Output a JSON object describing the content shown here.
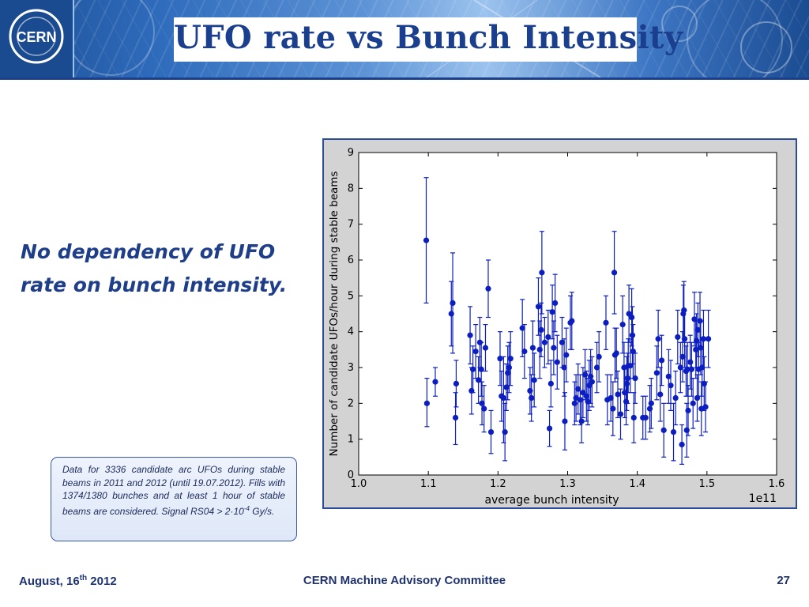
{
  "slide": {
    "title": "UFO rate vs Bunch Intensity",
    "claim_line1": "No dependency of UFO",
    "claim_line2": "rate on bunch intensity.",
    "note": {
      "part1": "Data for 3336 candidate arc UFOs during stable beams in 2011 and 2012 (until 19.07.2012). Fills with 1374/1380 bunches and at least 1 hour of stable beams are considered. Signal RS04 > 2",
      "dot": "·",
      "part2": "10",
      "exp": "-4",
      "part3": " Gy/s."
    },
    "footer": {
      "date_prefix": "August, 16",
      "date_sup": "th",
      "date_suffix": " 2012",
      "center": "CERN Machine Advisory Committee",
      "page": "27"
    }
  },
  "logo_text": "CERN",
  "colors": {
    "title": "#1b3f8f",
    "marker": "#0d1ec0",
    "panel": "#d3d3d3"
  },
  "chart_data": {
    "type": "scatter",
    "xlabel": "average bunch intensity",
    "ylabel": "Number of candidate UFOs/hour during stable beams",
    "x_multiplier_label": "1e11",
    "xlim": [
      1.0,
      1.6
    ],
    "ylim": [
      0,
      9
    ],
    "xticks": [
      1.0,
      1.1,
      1.2,
      1.3,
      1.4,
      1.5,
      1.6
    ],
    "yticks": [
      0,
      1,
      2,
      3,
      4,
      5,
      6,
      7,
      8,
      9
    ],
    "grid": false,
    "legend": "none",
    "points": [
      {
        "x": 1.097,
        "y": 6.55,
        "lo": 4.8,
        "hi": 8.3
      },
      {
        "x": 1.098,
        "y": 2.0,
        "lo": 1.35,
        "hi": 2.7
      },
      {
        "x": 1.11,
        "y": 2.6,
        "lo": 2.2,
        "hi": 3.0
      },
      {
        "x": 1.133,
        "y": 4.5,
        "lo": 3.6,
        "hi": 5.4
      },
      {
        "x": 1.135,
        "y": 4.8,
        "lo": 3.4,
        "hi": 6.2
      },
      {
        "x": 1.139,
        "y": 1.6,
        "lo": 0.85,
        "hi": 2.3
      },
      {
        "x": 1.14,
        "y": 2.55,
        "lo": 1.9,
        "hi": 3.2
      },
      {
        "x": 1.16,
        "y": 3.9,
        "lo": 3.1,
        "hi": 4.7
      },
      {
        "x": 1.162,
        "y": 2.35,
        "lo": 1.7,
        "hi": 3.0
      },
      {
        "x": 1.164,
        "y": 2.95,
        "lo": 2.3,
        "hi": 3.6
      },
      {
        "x": 1.168,
        "y": 3.45,
        "lo": 2.7,
        "hi": 4.2
      },
      {
        "x": 1.172,
        "y": 2.65,
        "lo": 2.0,
        "hi": 3.3
      },
      {
        "x": 1.174,
        "y": 3.7,
        "lo": 3.0,
        "hi": 4.4
      },
      {
        "x": 1.176,
        "y": 2.95,
        "lo": 2.2,
        "hi": 3.7
      },
      {
        "x": 1.177,
        "y": 2.0,
        "lo": 1.4,
        "hi": 2.6
      },
      {
        "x": 1.18,
        "y": 1.85,
        "lo": 1.2,
        "hi": 2.5
      },
      {
        "x": 1.182,
        "y": 3.55,
        "lo": 2.9,
        "hi": 4.2
      },
      {
        "x": 1.186,
        "y": 5.2,
        "lo": 4.4,
        "hi": 6.0
      },
      {
        "x": 1.19,
        "y": 1.2,
        "lo": 0.6,
        "hi": 1.8
      },
      {
        "x": 1.203,
        "y": 3.25,
        "lo": 2.5,
        "hi": 4.0
      },
      {
        "x": 1.205,
        "y": 2.2,
        "lo": 1.5,
        "hi": 2.9
      },
      {
        "x": 1.208,
        "y": 2.15,
        "lo": 0.9,
        "hi": 3.3
      },
      {
        "x": 1.21,
        "y": 1.2,
        "lo": 0.4,
        "hi": 2.0
      },
      {
        "x": 1.212,
        "y": 2.45,
        "lo": 1.8,
        "hi": 3.1
      },
      {
        "x": 1.214,
        "y": 2.85,
        "lo": 2.1,
        "hi": 3.6
      },
      {
        "x": 1.216,
        "y": 3.0,
        "lo": 2.3,
        "hi": 3.7
      },
      {
        "x": 1.218,
        "y": 3.25,
        "lo": 2.5,
        "hi": 4.0
      },
      {
        "x": 1.235,
        "y": 4.1,
        "lo": 3.3,
        "hi": 4.9
      },
      {
        "x": 1.238,
        "y": 3.45,
        "lo": 2.7,
        "hi": 4.2
      },
      {
        "x": 1.246,
        "y": 2.35,
        "lo": 1.7,
        "hi": 3.0
      },
      {
        "x": 1.248,
        "y": 2.15,
        "lo": 1.5,
        "hi": 2.8
      },
      {
        "x": 1.25,
        "y": 3.55,
        "lo": 2.8,
        "hi": 4.3
      },
      {
        "x": 1.252,
        "y": 2.65,
        "lo": 1.9,
        "hi": 3.4
      },
      {
        "x": 1.258,
        "y": 4.7,
        "lo": 3.9,
        "hi": 5.5
      },
      {
        "x": 1.26,
        "y": 3.5,
        "lo": 2.7,
        "hi": 4.3
      },
      {
        "x": 1.262,
        "y": 4.05,
        "lo": 3.3,
        "hi": 4.8
      },
      {
        "x": 1.263,
        "y": 5.65,
        "lo": 4.5,
        "hi": 6.8
      },
      {
        "x": 1.267,
        "y": 3.7,
        "lo": 3.0,
        "hi": 4.4
      },
      {
        "x": 1.272,
        "y": 3.85,
        "lo": 3.1,
        "hi": 4.6
      },
      {
        "x": 1.274,
        "y": 1.3,
        "lo": 0.8,
        "hi": 1.8
      },
      {
        "x": 1.276,
        "y": 2.55,
        "lo": 1.9,
        "hi": 3.2
      },
      {
        "x": 1.278,
        "y": 4.55,
        "lo": 3.8,
        "hi": 5.3
      },
      {
        "x": 1.28,
        "y": 3.55,
        "lo": 2.8,
        "hi": 4.3
      },
      {
        "x": 1.282,
        "y": 4.8,
        "lo": 4.0,
        "hi": 5.6
      },
      {
        "x": 1.285,
        "y": 3.15,
        "lo": 2.4,
        "hi": 3.9
      },
      {
        "x": 1.292,
        "y": 3.7,
        "lo": 3.0,
        "hi": 4.4
      },
      {
        "x": 1.295,
        "y": 3.0,
        "lo": 2.2,
        "hi": 3.8
      },
      {
        "x": 1.296,
        "y": 1.5,
        "lo": 0.7,
        "hi": 2.3
      },
      {
        "x": 1.298,
        "y": 3.35,
        "lo": 2.6,
        "hi": 4.1
      },
      {
        "x": 1.304,
        "y": 4.25,
        "lo": 3.5,
        "hi": 5.0
      },
      {
        "x": 1.306,
        "y": 4.3,
        "lo": 3.5,
        "hi": 5.1
      },
      {
        "x": 1.31,
        "y": 2.0,
        "lo": 1.4,
        "hi": 2.6
      },
      {
        "x": 1.312,
        "y": 2.15,
        "lo": 1.5,
        "hi": 2.8
      },
      {
        "x": 1.315,
        "y": 2.4,
        "lo": 1.7,
        "hi": 3.1
      },
      {
        "x": 1.318,
        "y": 2.1,
        "lo": 1.4,
        "hi": 2.8
      },
      {
        "x": 1.32,
        "y": 1.5,
        "lo": 0.9,
        "hi": 2.1
      },
      {
        "x": 1.322,
        "y": 2.3,
        "lo": 1.6,
        "hi": 3.0
      },
      {
        "x": 1.325,
        "y": 2.8,
        "lo": 2.1,
        "hi": 3.5
      },
      {
        "x": 1.327,
        "y": 2.2,
        "lo": 1.5,
        "hi": 2.9
      },
      {
        "x": 1.329,
        "y": 2.05,
        "lo": 1.4,
        "hi": 2.7
      },
      {
        "x": 1.331,
        "y": 2.5,
        "lo": 1.8,
        "hi": 3.2
      },
      {
        "x": 1.333,
        "y": 2.75,
        "lo": 2.0,
        "hi": 3.5
      },
      {
        "x": 1.335,
        "y": 2.6,
        "lo": 1.9,
        "hi": 3.3
      },
      {
        "x": 1.342,
        "y": 3.0,
        "lo": 2.3,
        "hi": 3.7
      },
      {
        "x": 1.345,
        "y": 3.3,
        "lo": 2.6,
        "hi": 4.0
      },
      {
        "x": 1.355,
        "y": 4.25,
        "lo": 3.5,
        "hi": 5.0
      },
      {
        "x": 1.357,
        "y": 2.1,
        "lo": 1.4,
        "hi": 2.8
      },
      {
        "x": 1.362,
        "y": 2.15,
        "lo": 1.5,
        "hi": 2.8
      },
      {
        "x": 1.365,
        "y": 1.85,
        "lo": 1.1,
        "hi": 2.6
      },
      {
        "x": 1.367,
        "y": 5.65,
        "lo": 4.5,
        "hi": 6.8
      },
      {
        "x": 1.368,
        "y": 3.35,
        "lo": 2.6,
        "hi": 4.1
      },
      {
        "x": 1.37,
        "y": 3.4,
        "lo": 2.7,
        "hi": 4.1
      },
      {
        "x": 1.372,
        "y": 2.25,
        "lo": 1.6,
        "hi": 2.9
      },
      {
        "x": 1.376,
        "y": 1.7,
        "lo": 1.0,
        "hi": 2.4
      },
      {
        "x": 1.379,
        "y": 4.2,
        "lo": 3.4,
        "hi": 5.0
      },
      {
        "x": 1.381,
        "y": 3.0,
        "lo": 2.3,
        "hi": 3.7
      },
      {
        "x": 1.382,
        "y": 2.3,
        "lo": 1.6,
        "hi": 3.0
      },
      {
        "x": 1.384,
        "y": 2.05,
        "lo": 1.4,
        "hi": 2.7
      },
      {
        "x": 1.385,
        "y": 2.55,
        "lo": 1.8,
        "hi": 3.3
      },
      {
        "x": 1.386,
        "y": 2.7,
        "lo": 2.0,
        "hi": 3.4
      },
      {
        "x": 1.387,
        "y": 3.05,
        "lo": 2.3,
        "hi": 3.8
      },
      {
        "x": 1.388,
        "y": 4.5,
        "lo": 3.7,
        "hi": 5.3
      },
      {
        "x": 1.39,
        "y": 3.05,
        "lo": 2.3,
        "hi": 3.8
      },
      {
        "x": 1.392,
        "y": 4.4,
        "lo": 3.6,
        "hi": 5.2
      },
      {
        "x": 1.393,
        "y": 3.9,
        "lo": 3.1,
        "hi": 4.7
      },
      {
        "x": 1.394,
        "y": 3.45,
        "lo": 2.7,
        "hi": 4.2
      },
      {
        "x": 1.395,
        "y": 1.6,
        "lo": 0.9,
        "hi": 2.3
      },
      {
        "x": 1.397,
        "y": 2.7,
        "lo": 2.0,
        "hi": 3.4
      },
      {
        "x": 1.408,
        "y": 1.6,
        "lo": 1.0,
        "hi": 2.2
      },
      {
        "x": 1.412,
        "y": 1.6,
        "lo": 1.0,
        "hi": 2.2
      },
      {
        "x": 1.418,
        "y": 1.85,
        "lo": 1.2,
        "hi": 2.5
      },
      {
        "x": 1.42,
        "y": 2.0,
        "lo": 1.3,
        "hi": 2.7
      },
      {
        "x": 1.428,
        "y": 2.85,
        "lo": 2.1,
        "hi": 3.6
      },
      {
        "x": 1.43,
        "y": 3.8,
        "lo": 3.0,
        "hi": 4.6
      },
      {
        "x": 1.433,
        "y": 2.25,
        "lo": 1.5,
        "hi": 3.0
      },
      {
        "x": 1.435,
        "y": 3.2,
        "lo": 2.5,
        "hi": 3.9
      },
      {
        "x": 1.438,
        "y": 1.25,
        "lo": 0.5,
        "hi": 2.0
      },
      {
        "x": 1.445,
        "y": 2.75,
        "lo": 2.0,
        "hi": 3.5
      },
      {
        "x": 1.448,
        "y": 2.5,
        "lo": 1.8,
        "hi": 3.2
      },
      {
        "x": 1.452,
        "y": 1.2,
        "lo": 0.4,
        "hi": 2.0
      },
      {
        "x": 1.455,
        "y": 2.15,
        "lo": 1.4,
        "hi": 2.9
      },
      {
        "x": 1.458,
        "y": 3.85,
        "lo": 3.1,
        "hi": 4.6
      },
      {
        "x": 1.462,
        "y": 3.0,
        "lo": 2.3,
        "hi": 3.7
      },
      {
        "x": 1.464,
        "y": 0.85,
        "lo": 0.3,
        "hi": 1.4
      },
      {
        "x": 1.465,
        "y": 3.3,
        "lo": 2.6,
        "hi": 4.0
      },
      {
        "x": 1.466,
        "y": 4.5,
        "lo": 3.7,
        "hi": 5.3
      },
      {
        "x": 1.467,
        "y": 4.6,
        "lo": 3.8,
        "hi": 5.4
      },
      {
        "x": 1.468,
        "y": 3.8,
        "lo": 3.0,
        "hi": 4.6
      },
      {
        "x": 1.47,
        "y": 2.9,
        "lo": 2.2,
        "hi": 3.6
      },
      {
        "x": 1.471,
        "y": 1.25,
        "lo": 0.5,
        "hi": 2.0
      },
      {
        "x": 1.472,
        "y": 2.95,
        "lo": 2.2,
        "hi": 3.7
      },
      {
        "x": 1.473,
        "y": 1.8,
        "lo": 1.1,
        "hi": 2.5
      },
      {
        "x": 1.476,
        "y": 3.15,
        "lo": 2.4,
        "hi": 3.9
      },
      {
        "x": 1.478,
        "y": 2.95,
        "lo": 2.2,
        "hi": 3.7
      },
      {
        "x": 1.48,
        "y": 2.0,
        "lo": 1.3,
        "hi": 2.7
      },
      {
        "x": 1.482,
        "y": 4.35,
        "lo": 3.6,
        "hi": 5.1
      },
      {
        "x": 1.484,
        "y": 3.5,
        "lo": 2.7,
        "hi": 4.3
      },
      {
        "x": 1.485,
        "y": 3.75,
        "lo": 3.0,
        "hi": 4.5
      },
      {
        "x": 1.486,
        "y": 2.15,
        "lo": 1.5,
        "hi": 2.8
      },
      {
        "x": 1.487,
        "y": 4.05,
        "lo": 3.3,
        "hi": 4.8
      },
      {
        "x": 1.488,
        "y": 2.95,
        "lo": 2.2,
        "hi": 3.7
      },
      {
        "x": 1.49,
        "y": 4.3,
        "lo": 3.5,
        "hi": 5.1
      },
      {
        "x": 1.491,
        "y": 3.55,
        "lo": 2.8,
        "hi": 4.3
      },
      {
        "x": 1.492,
        "y": 1.85,
        "lo": 1.1,
        "hi": 2.6
      },
      {
        "x": 1.493,
        "y": 3.0,
        "lo": 2.2,
        "hi": 3.8
      },
      {
        "x": 1.495,
        "y": 3.8,
        "lo": 3.0,
        "hi": 4.6
      },
      {
        "x": 1.496,
        "y": 2.55,
        "lo": 1.8,
        "hi": 3.3
      },
      {
        "x": 1.498,
        "y": 1.9,
        "lo": 1.2,
        "hi": 2.6
      },
      {
        "x": 1.502,
        "y": 3.8,
        "lo": 3.0,
        "hi": 4.6
      }
    ]
  }
}
